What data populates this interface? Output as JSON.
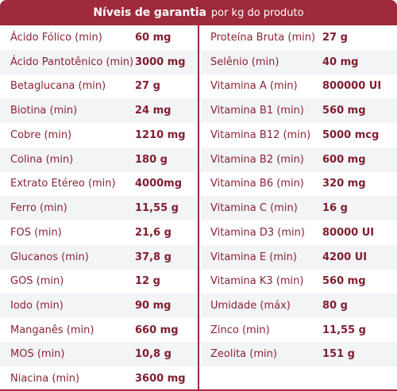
{
  "header": {
    "title_strong": "Níveis de garantia",
    "title_light": "por kg do produto"
  },
  "colors": {
    "accent": "#9e2a3b",
    "row_shade": "#f3f4f6"
  },
  "left": [
    {
      "name": "Ácido Fólico (min)",
      "value": "60 mg"
    },
    {
      "name": "Ácido Pantotênico (min)",
      "value": "3000 mg"
    },
    {
      "name": "Betaglucana (min)",
      "value": "27 g"
    },
    {
      "name": "Biotina (min)",
      "value": "24 mg"
    },
    {
      "name": "Cobre (min)",
      "value": "1210 mg"
    },
    {
      "name": "Colina (min)",
      "value": "180 g"
    },
    {
      "name": "Extrato Etéreo (min)",
      "value": "4000mg"
    },
    {
      "name": "Ferro (min)",
      "value": "11,55 g"
    },
    {
      "name": "FOS (min)",
      "value": "21,6 g"
    },
    {
      "name": "Glucanos (min)",
      "value": "37,8 g"
    },
    {
      "name": "GOS (min)",
      "value": "12 g"
    },
    {
      "name": "Iodo (min)",
      "value": "90 mg"
    },
    {
      "name": "Manganês (min)",
      "value": "660 mg"
    },
    {
      "name": "MOS (min)",
      "value": "10,8 g"
    },
    {
      "name": "Niacina (min)",
      "value": "3600 mg"
    }
  ],
  "right": [
    {
      "name": "Proteína Bruta (min)",
      "value": "27 g"
    },
    {
      "name": "Selênio (min)",
      "value": "40 mg"
    },
    {
      "name": "Vitamina A (min)",
      "value": "800000 UI"
    },
    {
      "name": "Vitamina B1 (min)",
      "value": "560 mg"
    },
    {
      "name": "Vitamina B12 (min)",
      "value": "5000 mcg"
    },
    {
      "name": "Vitamina B2 (min)",
      "value": "600 mg"
    },
    {
      "name": "Vitamina B6 (min)",
      "value": "320 mg"
    },
    {
      "name": "Vitamina C (min)",
      "value": "16 g"
    },
    {
      "name": "Vitamina D3 (min)",
      "value": "80000 UI"
    },
    {
      "name": "Vitamina E (min)",
      "value": "4200 UI"
    },
    {
      "name": "Vitamina K3 (min)",
      "value": "560 mg"
    },
    {
      "name": "Umidade (máx)",
      "value": "80 g"
    },
    {
      "name": "Zinco (min)",
      "value": "11,55 g"
    },
    {
      "name": "Zeolita (min)",
      "value": "151 g"
    }
  ]
}
